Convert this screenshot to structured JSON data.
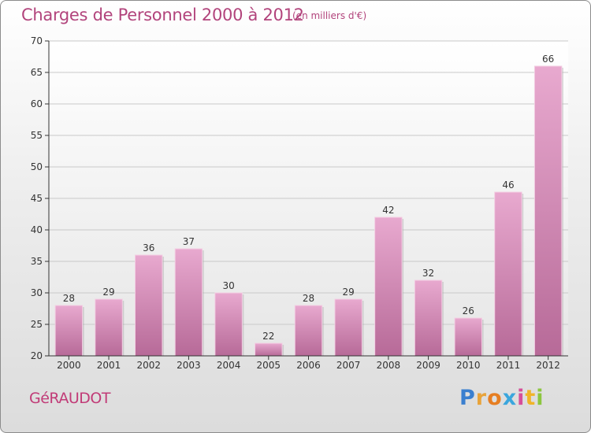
{
  "header": {
    "title": "Charges de Personnel 2000 à 2012",
    "unit_note": "(en milliers d'€)"
  },
  "footer": {
    "commune": "GéRAUDOT",
    "brand_letters": [
      "P",
      "r",
      "o",
      "x",
      "i",
      "t",
      "i"
    ],
    "brand_colors": [
      "#3a7fcf",
      "#e8a33a",
      "#e67e22",
      "#3aa6dd",
      "#d64e9a",
      "#f0b429",
      "#8cc63f"
    ]
  },
  "chart_data": {
    "type": "bar",
    "categories": [
      "2000",
      "2001",
      "2002",
      "2003",
      "2004",
      "2005",
      "2006",
      "2007",
      "2008",
      "2009",
      "2010",
      "2011",
      "2012"
    ],
    "values": [
      28,
      29,
      36,
      37,
      30,
      22,
      28,
      29,
      42,
      32,
      26,
      46,
      66
    ],
    "ylim": [
      20,
      70
    ],
    "yticks": [
      20,
      25,
      30,
      35,
      40,
      45,
      50,
      55,
      60,
      65,
      70
    ],
    "grid": true,
    "bar_color": "#d98ab8",
    "axis_color": "#333333"
  }
}
